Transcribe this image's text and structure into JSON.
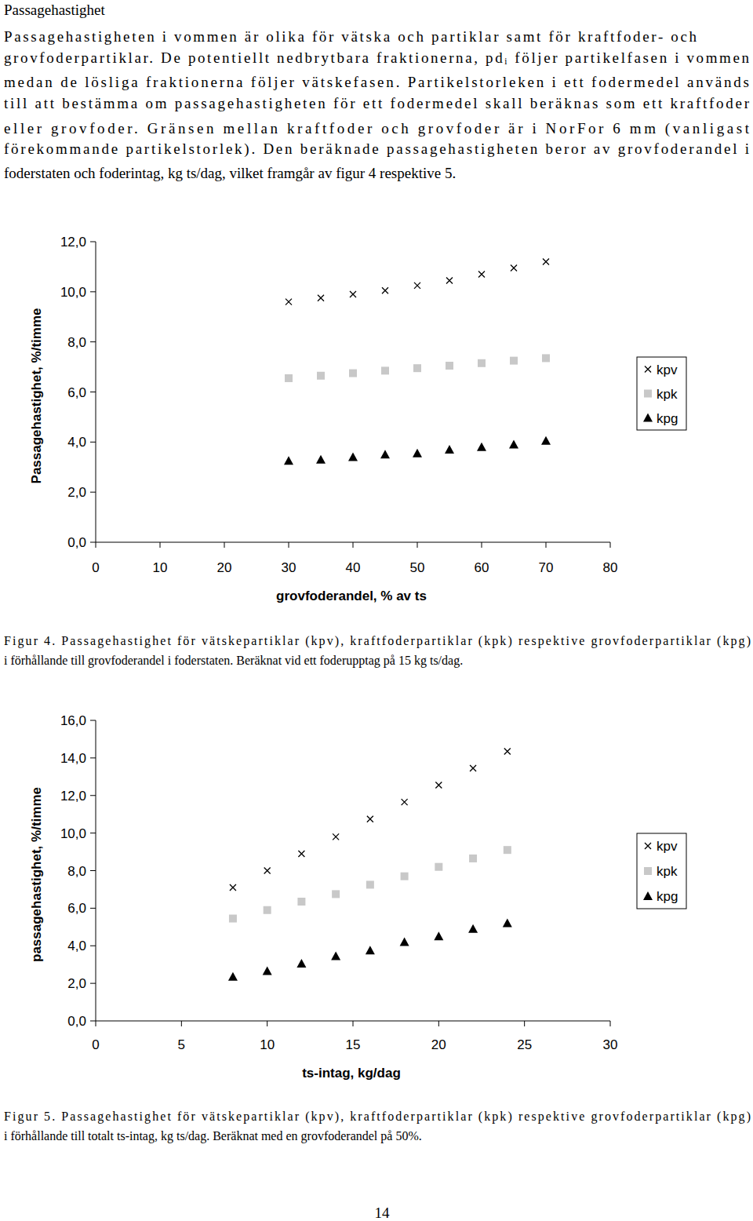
{
  "heading": "Passagehastighet",
  "paragraph": [
    "Passagehastigheten i vommen är olika för vätska och partiklar samt för kraftfoder- och",
    "grovfoderpartiklar. De potentiellt nedbrytbara fraktionerna, pdᵢ följer partikelfasen i vommen",
    "medan de lösliga fraktionerna följer vätskefasen. Partikelstorleken i ett fodermedel används",
    "till att bestämma om passagehastigheten för ett fodermedel skall beräknas som ett kraftfoder",
    "eller grovfoder. Gränsen mellan kraftfoder och grovfoder är i NorFor 6 mm (vanligast",
    "förekommande partikelstorlek). Den beräknade passagehastigheten beror av grovfoderandel i",
    "foderstaten och foderintag, kg ts/dag, vilket framgår av figur 4 respektive 5."
  ],
  "chart_data": [
    {
      "type": "scatter",
      "x_label": "grovfoderandel, % av ts",
      "y_label": "Passagehastighet, %/timme",
      "x": [
        30,
        35,
        40,
        45,
        50,
        55,
        60,
        65,
        70
      ],
      "series": [
        {
          "name": "kpv",
          "color": "#000000",
          "marker": "x",
          "values": [
            9.6,
            9.75,
            9.9,
            10.05,
            10.25,
            10.45,
            10.7,
            10.95,
            11.2
          ]
        },
        {
          "name": "kpk",
          "color": "#c8c8c8",
          "marker": "square",
          "values": [
            6.55,
            6.65,
            6.75,
            6.85,
            6.95,
            7.05,
            7.15,
            7.25,
            7.35
          ]
        },
        {
          "name": "kpg",
          "color": "#000000",
          "marker": "triangle",
          "values": [
            3.25,
            3.3,
            3.4,
            3.5,
            3.55,
            3.7,
            3.8,
            3.9,
            4.05
          ]
        }
      ],
      "xlim": [
        0,
        80
      ],
      "xticks": [
        0,
        10,
        20,
        30,
        40,
        50,
        60,
        70,
        80
      ],
      "ylim": [
        0,
        12
      ],
      "yticks": [
        {
          "value": 0,
          "label": "0,0"
        },
        {
          "value": 2,
          "label": "2,0"
        },
        {
          "value": 4,
          "label": "4,0"
        },
        {
          "value": 6,
          "label": "6,0"
        },
        {
          "value": 8,
          "label": "8,0"
        },
        {
          "value": 10,
          "label": "10,0"
        },
        {
          "value": 12,
          "label": "12,0"
        }
      ],
      "grid": false,
      "legend": "right"
    },
    {
      "type": "scatter",
      "x_label": "ts-intag, kg/dag",
      "y_label": "passagehastighet, %/timme",
      "x": [
        8,
        10,
        12,
        14,
        16,
        18,
        20,
        22,
        24
      ],
      "series": [
        {
          "name": "kpv",
          "color": "#000000",
          "marker": "x",
          "values": [
            7.1,
            8.0,
            8.9,
            9.8,
            10.75,
            11.65,
            12.55,
            13.45,
            14.35
          ]
        },
        {
          "name": "kpk",
          "color": "#c8c8c8",
          "marker": "square",
          "values": [
            5.45,
            5.9,
            6.35,
            6.75,
            7.25,
            7.7,
            8.2,
            8.65,
            9.1
          ]
        },
        {
          "name": "kpg",
          "color": "#000000",
          "marker": "triangle",
          "values": [
            2.35,
            2.65,
            3.05,
            3.45,
            3.75,
            4.2,
            4.5,
            4.9,
            5.2
          ]
        }
      ],
      "xlim": [
        0,
        30
      ],
      "xticks": [
        0,
        5,
        10,
        15,
        20,
        25,
        30
      ],
      "ylim": [
        0,
        16
      ],
      "yticks": [
        {
          "value": 0,
          "label": "0,0"
        },
        {
          "value": 2,
          "label": "2,0"
        },
        {
          "value": 4,
          "label": "4,0"
        },
        {
          "value": 6,
          "label": "6,0"
        },
        {
          "value": 8,
          "label": "8,0"
        },
        {
          "value": 10,
          "label": "10,0"
        },
        {
          "value": 12,
          "label": "12,0"
        },
        {
          "value": 14,
          "label": "14,0"
        },
        {
          "value": 16,
          "label": "16,0"
        }
      ],
      "grid": false,
      "legend": "right"
    }
  ],
  "captions": [
    [
      "Figur 4. Passagehastighet för vätskepartiklar (kpv), kraftfoderpartiklar (kpk) respektive grovfoderpartiklar (kpg)",
      "i förhållande till grovfoderandel i foderstaten. Beräknat vid ett foderupptag på 15 kg ts/dag."
    ],
    [
      "Figur 5. Passagehastighet för vätskepartiklar (kpv), kraftfoderpartiklar (kpk) respektive grovfoderpartiklar (kpg)",
      "i förhållande till totalt ts-intag, kg ts/dag. Beräknat med en grovfoderandel på 50%."
    ]
  ],
  "page_number": "14"
}
